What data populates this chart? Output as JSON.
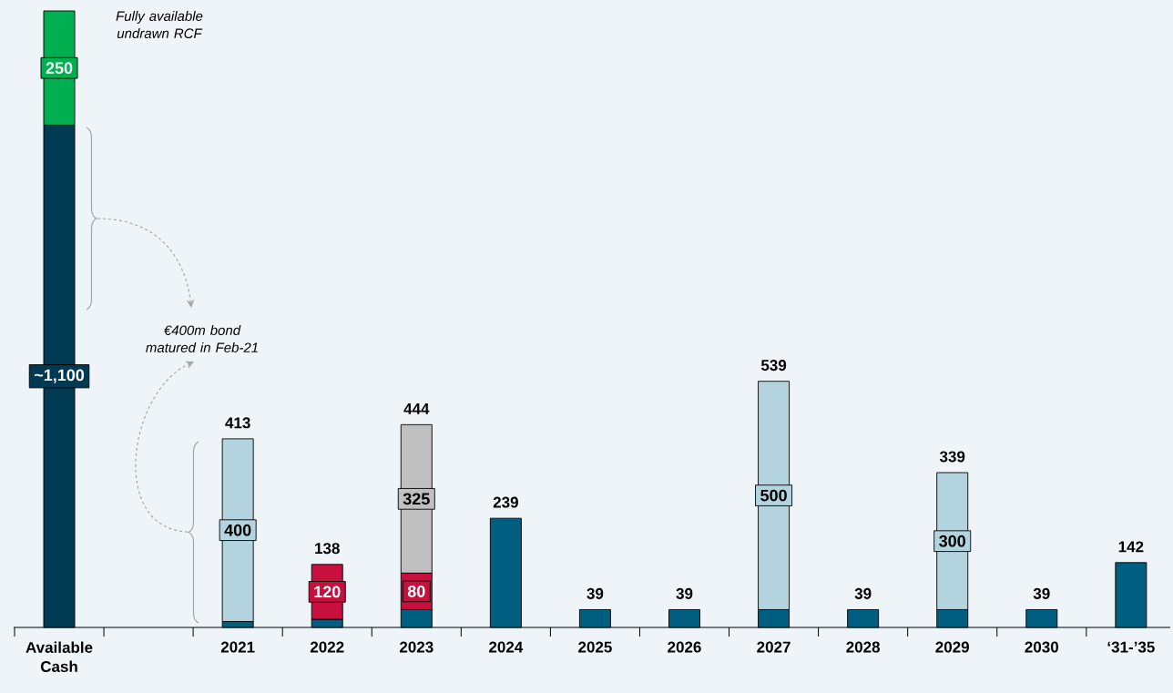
{
  "chart_data": {
    "type": "bar",
    "stacked": true,
    "categories": [
      "Available Cash",
      null,
      "2021",
      "2022",
      "2023",
      "2024",
      "2025",
      "2026",
      "2027",
      "2028",
      "2029",
      "2030",
      "‘31-’35"
    ],
    "series": [
      {
        "color": "#005f80",
        "colors": [
          "#003a52",
          null,
          null,
          null,
          null,
          null,
          null,
          null,
          null,
          null,
          null,
          null,
          null
        ],
        "values": [
          1100,
          null,
          13,
          18,
          39,
          239,
          39,
          39,
          39,
          39,
          39,
          39,
          142
        ],
        "value_labels": [
          "~1,100",
          null,
          null,
          null,
          null,
          null,
          null,
          null,
          null,
          null,
          null,
          null,
          null
        ]
      },
      {
        "color": "#c8103e",
        "values": [
          null,
          null,
          null,
          120,
          80,
          null,
          null,
          null,
          null,
          null,
          null,
          null,
          null
        ],
        "value_labels": [
          null,
          null,
          null,
          "120",
          "80",
          null,
          null,
          null,
          null,
          null,
          null,
          null,
          null
        ]
      },
      {
        "color": "#c0c0c0",
        "values": [
          null,
          null,
          null,
          null,
          325,
          null,
          null,
          null,
          null,
          null,
          null,
          null,
          null
        ],
        "value_labels": [
          null,
          null,
          null,
          null,
          "325",
          null,
          null,
          null,
          null,
          null,
          null,
          null,
          null
        ]
      },
      {
        "color": "#b3d4de",
        "values": [
          null,
          null,
          400,
          null,
          null,
          null,
          null,
          null,
          500,
          null,
          300,
          null,
          null
        ],
        "value_labels": [
          null,
          null,
          "400",
          null,
          null,
          null,
          null,
          null,
          "500",
          null,
          "300",
          null,
          null
        ]
      },
      {
        "color": "#00b050",
        "values": [
          250,
          null,
          null,
          null,
          null,
          null,
          null,
          null,
          null,
          null,
          null,
          null,
          null
        ],
        "value_labels": [
          "250",
          null,
          null,
          null,
          null,
          null,
          null,
          null,
          null,
          null,
          null,
          null,
          null
        ]
      }
    ],
    "totals": [
      null,
      null,
      "413",
      "138",
      "444",
      "239",
      "39",
      "39",
      "539",
      "39",
      "339",
      "39",
      "142"
    ],
    "annotations": [
      "Fully available undrawn RCF",
      "€400m bond matured in Feb-21"
    ]
  }
}
